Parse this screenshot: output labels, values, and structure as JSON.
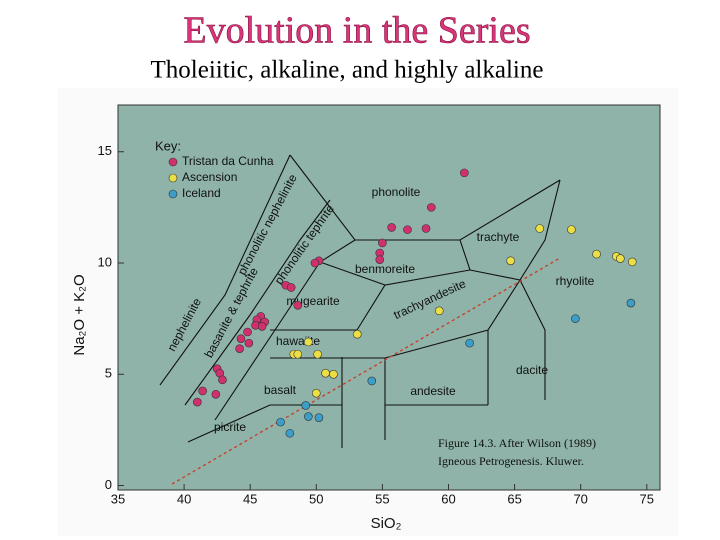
{
  "chart_data": {
    "type": "scatter",
    "title": "Evolution in the Series",
    "subtitle": "Tholeiitic, alkaline, and highly alkaline",
    "x_label": "SiO₂",
    "y_label": "Na₂O + K₂O",
    "legend_title": "Key:",
    "xlim": [
      35,
      76
    ],
    "ylim": [
      -0.2,
      17.1
    ],
    "xticks": [
      35,
      40,
      45,
      50,
      55,
      60,
      65,
      70,
      75
    ],
    "yticks": [
      0,
      5,
      10,
      15
    ],
    "field_labels": [
      "phonolite",
      "trachyte",
      "rhyolite",
      "benmoreite",
      "trachyandesite",
      "mugearite",
      "hawaiite",
      "basalt",
      "andesite",
      "dacite",
      "picrite",
      "nephelinite",
      "basanite & tephrite",
      "phonolitic nephelinite",
      "phonolitic tephrite"
    ],
    "caption": [
      "Figure 14.3. After Wilson (1989)",
      "Igneous Petrogenesis. Kluwer."
    ],
    "series": [
      {
        "name": "Tristan da Cunha",
        "color": "#d0316e",
        "x": [
          61.2,
          58.7,
          55.7,
          56.9,
          58.3,
          55.0,
          54.8,
          54.8,
          50.2,
          49.9,
          47.7,
          48.1,
          48.6,
          45.8,
          45.5,
          46.1,
          45.4,
          45.9,
          44.8,
          44.3,
          44.9,
          44.2,
          42.5,
          42.7,
          42.9,
          41.4,
          42.4,
          41.0
        ],
        "values": [
          14.05,
          12.5,
          11.6,
          11.5,
          11.55,
          10.9,
          10.45,
          10.15,
          10.1,
          10.0,
          9.0,
          8.9,
          8.1,
          7.6,
          7.45,
          7.35,
          7.2,
          7.15,
          6.9,
          6.6,
          6.4,
          6.15,
          5.25,
          5.05,
          4.75,
          4.25,
          4.1,
          3.75
        ]
      },
      {
        "name": "Ascension",
        "color": "#ecdf45",
        "x": [
          66.9,
          69.3,
          71.2,
          72.7,
          73.0,
          73.9,
          64.7,
          59.3,
          53.1,
          49.4,
          48.3,
          48.6,
          50.1,
          50.7,
          51.3,
          50.0
        ],
        "values": [
          11.55,
          11.5,
          10.4,
          10.3,
          10.2,
          10.05,
          10.1,
          7.85,
          6.8,
          6.45,
          5.9,
          5.9,
          5.9,
          5.05,
          5.0,
          4.15
        ]
      },
      {
        "name": "Iceland",
        "color": "#3a9ec8",
        "x": [
          73.8,
          69.6,
          61.6,
          54.2,
          49.2,
          49.4,
          50.2,
          47.3,
          48.0
        ],
        "values": [
          8.2,
          7.5,
          6.4,
          4.7,
          3.6,
          3.1,
          3.05,
          2.85,
          2.35
        ]
      }
    ]
  }
}
